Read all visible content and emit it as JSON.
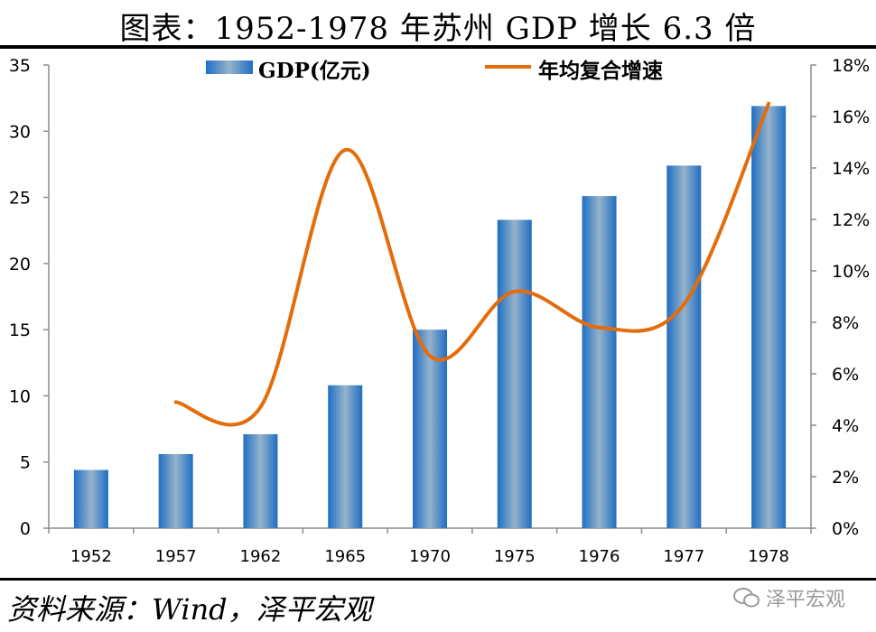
{
  "title": "图表：1952-1978 年苏州 GDP 增长 6.3 倍",
  "source": "资料来源：Wind，泽平宏观",
  "watermark": "泽平宏观",
  "watermark_icon": "wechat-icon",
  "chart_data": {
    "type": "bar+line",
    "categories": [
      "1952",
      "1957",
      "1962",
      "1965",
      "1970",
      "1975",
      "1976",
      "1977",
      "1978"
    ],
    "series": [
      {
        "name": "GDP(亿元)",
        "type": "bar",
        "axis": "left",
        "color": "#2271C2",
        "values": [
          4.4,
          5.6,
          7.1,
          10.8,
          15.0,
          23.3,
          25.1,
          27.4,
          31.9
        ]
      },
      {
        "name": "年均复合增速",
        "type": "line",
        "axis": "right",
        "color": "#E46C0A",
        "values": [
          null,
          4.9,
          4.7,
          14.7,
          6.7,
          9.2,
          7.8,
          8.7,
          16.5
        ]
      }
    ],
    "left_axis": {
      "ylim": [
        0,
        35
      ],
      "ticks": [
        "0",
        "5",
        "10",
        "15",
        "20",
        "25",
        "30",
        "35"
      ]
    },
    "right_axis": {
      "ylim": [
        0,
        18
      ],
      "ticks": [
        "0%",
        "2%",
        "4%",
        "6%",
        "8%",
        "10%",
        "12%",
        "14%",
        "16%",
        "18%"
      ]
    },
    "legend": "top",
    "grid": false
  }
}
